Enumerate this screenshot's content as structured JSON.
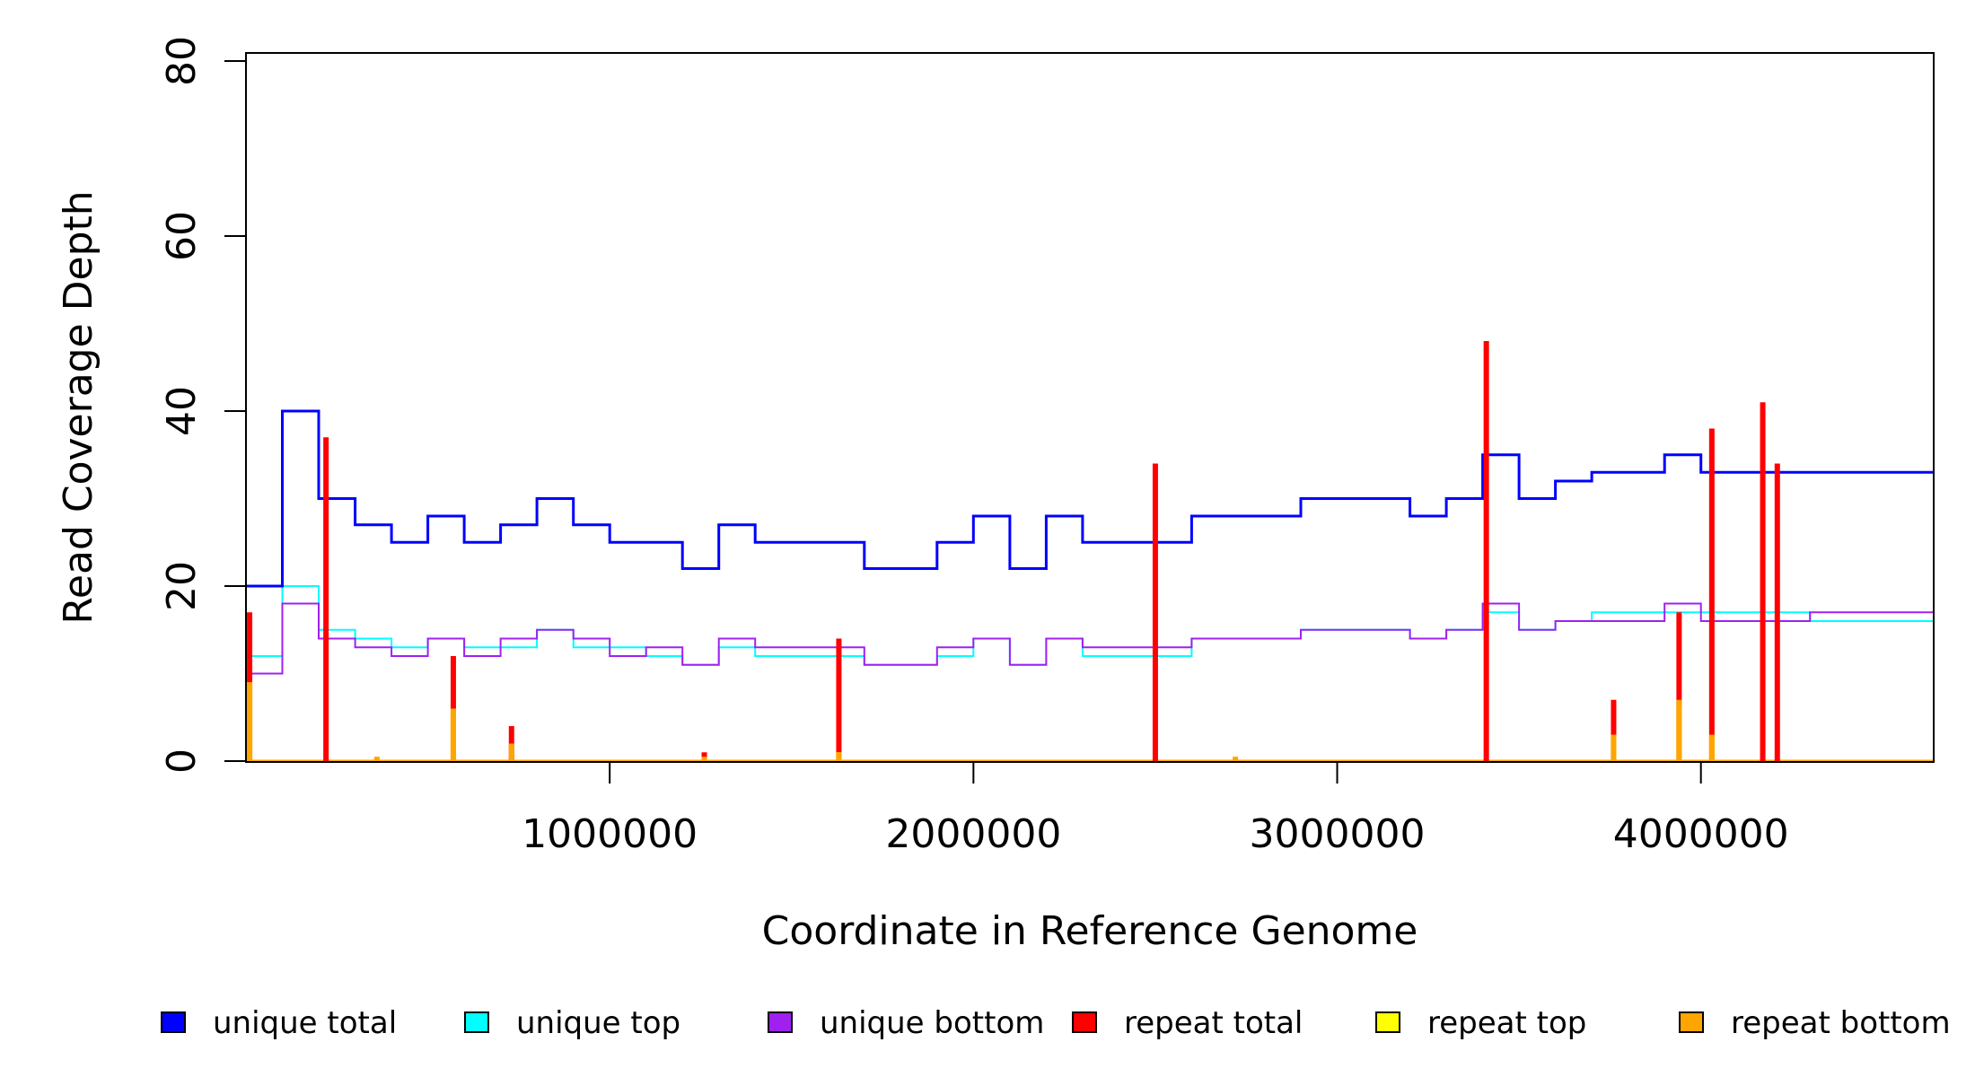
{
  "chart_data": {
    "type": "line",
    "style": "step",
    "title": "",
    "xlabel": "Coordinate in Reference Genome",
    "ylabel": "Read Coverage Depth",
    "xlim": [
      0,
      4640000
    ],
    "ylim": [
      0,
      80
    ],
    "x_ticks": [
      1000000,
      2000000,
      3000000,
      4000000
    ],
    "x_tick_labels": [
      "1000000",
      "2000000",
      "3000000",
      "4000000"
    ],
    "y_ticks": [
      0,
      20,
      40,
      60,
      80
    ],
    "y_tick_labels": [
      "0",
      "20",
      "40",
      "60",
      "80"
    ],
    "grid": false,
    "legend_placement": "bottom",
    "series": [
      {
        "name": "unique total",
        "color": "#0000FF",
        "x": [
          0,
          100000,
          200000,
          300000,
          400000,
          500000,
          600000,
          700000,
          800000,
          900000,
          1000000,
          1100000,
          1200000,
          1300000,
          1400000,
          1500000,
          1600000,
          1700000,
          1800000,
          1900000,
          2000000,
          2100000,
          2200000,
          2300000,
          2400000,
          2500000,
          2600000,
          2700000,
          2800000,
          2900000,
          3000000,
          3100000,
          3200000,
          3300000,
          3400000,
          3500000,
          3600000,
          3700000,
          3800000,
          3900000,
          4000000,
          4100000,
          4200000,
          4300000,
          4400000,
          4500000,
          4600000
        ],
        "values": [
          20,
          40,
          30,
          27,
          25,
          28,
          25,
          27,
          30,
          27,
          25,
          25,
          22,
          27,
          25,
          25,
          25,
          22,
          22,
          25,
          28,
          22,
          28,
          25,
          25,
          25,
          28,
          28,
          28,
          30,
          30,
          30,
          28,
          30,
          35,
          30,
          32,
          33,
          33,
          35,
          33,
          33,
          33,
          33,
          33,
          33,
          33
        ]
      },
      {
        "name": "unique top",
        "color": "#00FFFF",
        "x": [
          0,
          100000,
          200000,
          300000,
          400000,
          500000,
          600000,
          700000,
          800000,
          900000,
          1000000,
          1100000,
          1200000,
          1300000,
          1400000,
          1500000,
          1600000,
          1700000,
          1800000,
          1900000,
          2000000,
          2100000,
          2200000,
          2300000,
          2400000,
          2500000,
          2600000,
          2700000,
          2800000,
          2900000,
          3000000,
          3100000,
          3200000,
          3300000,
          3400000,
          3500000,
          3600000,
          3700000,
          3800000,
          3900000,
          4000000,
          4100000,
          4200000,
          4300000,
          4400000,
          4500000,
          4600000
        ],
        "values": [
          12,
          20,
          15,
          14,
          13,
          14,
          13,
          13,
          15,
          13,
          13,
          12,
          11,
          13,
          12,
          12,
          12,
          11,
          11,
          12,
          14,
          11,
          14,
          12,
          12,
          12,
          14,
          14,
          14,
          15,
          15,
          15,
          14,
          15,
          17,
          15,
          16,
          17,
          17,
          17,
          17,
          17,
          17,
          16,
          16,
          16,
          16
        ]
      },
      {
        "name": "unique bottom",
        "color": "#A020F0",
        "x": [
          0,
          100000,
          200000,
          300000,
          400000,
          500000,
          600000,
          700000,
          800000,
          900000,
          1000000,
          1100000,
          1200000,
          1300000,
          1400000,
          1500000,
          1600000,
          1700000,
          1800000,
          1900000,
          2000000,
          2100000,
          2200000,
          2300000,
          2400000,
          2500000,
          2600000,
          2700000,
          2800000,
          2900000,
          3000000,
          3100000,
          3200000,
          3300000,
          3400000,
          3500000,
          3600000,
          3700000,
          3800000,
          3900000,
          4000000,
          4100000,
          4200000,
          4300000,
          4400000,
          4500000,
          4600000
        ],
        "values": [
          10,
          18,
          14,
          13,
          12,
          14,
          12,
          14,
          15,
          14,
          12,
          13,
          11,
          14,
          13,
          13,
          13,
          11,
          11,
          13,
          14,
          11,
          14,
          13,
          13,
          13,
          14,
          14,
          14,
          15,
          15,
          15,
          14,
          15,
          18,
          15,
          16,
          16,
          16,
          18,
          16,
          16,
          16,
          17,
          17,
          17,
          17
        ]
      },
      {
        "name": "repeat total",
        "color": "#FF0000",
        "x": [
          10000,
          220000,
          570000,
          730000,
          1260000,
          1630000,
          2500000,
          3410000,
          3760000,
          3940000,
          4030000,
          4170000,
          4210000
        ],
        "values": [
          17,
          37,
          12,
          4,
          1,
          14,
          34,
          48,
          7,
          17,
          38,
          41,
          34
        ]
      },
      {
        "name": "repeat top",
        "color": "#FFFF00",
        "x": [
          10000,
          570000,
          1630000,
          3760000,
          3940000,
          4030000
        ],
        "values": [
          9,
          6,
          1,
          3,
          6,
          3
        ]
      },
      {
        "name": "repeat bottom",
        "color": "#FFA500",
        "x": [
          10000,
          360000,
          570000,
          730000,
          1260000,
          1630000,
          2720000,
          3760000,
          3940000,
          4030000
        ],
        "values": [
          9,
          0.5,
          6,
          2,
          0.5,
          1,
          0.5,
          3,
          7,
          3
        ]
      }
    ],
    "legend_entries": [
      {
        "name": "unique total",
        "color": "#0000FF"
      },
      {
        "name": "unique top",
        "color": "#00FFFF"
      },
      {
        "name": "unique bottom",
        "color": "#A020F0"
      },
      {
        "name": "repeat total",
        "color": "#FF0000"
      },
      {
        "name": "repeat top",
        "color": "#FFFF00"
      },
      {
        "name": "repeat bottom",
        "color": "#FFA500"
      }
    ]
  }
}
